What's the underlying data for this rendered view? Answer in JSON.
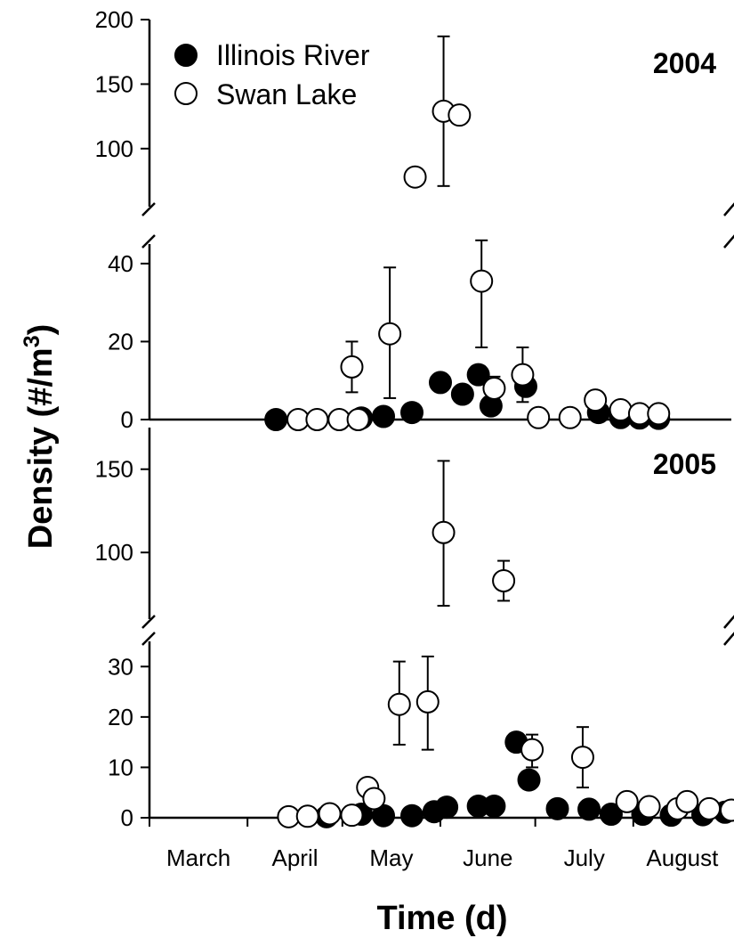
{
  "chart_data": {
    "type": "scatter",
    "xlabel": "Time (d)",
    "ylabel": "Density (#/m³)",
    "ylabel_main": "Density (#/m",
    "ylabel_sup": "3",
    "ylabel_close": ")",
    "x_ticks": [
      "March",
      "April",
      "May",
      "June",
      "July",
      "August"
    ],
    "legend": {
      "position": "top-left",
      "entries": [
        {
          "name": "Illinois River",
          "marker": "filled-circle",
          "color": "#000000"
        },
        {
          "name": "Swan Lake",
          "marker": "open-circle",
          "color": "#ffffff"
        }
      ]
    },
    "x_range": [
      1,
      185
    ],
    "x_month_starts": [
      1,
      32,
      62,
      93,
      123,
      154
    ],
    "panels": [
      {
        "year": "2004",
        "broken_axis": true,
        "y_segments": [
          {
            "range": [
              0,
              45
            ],
            "ticks": [
              0,
              20,
              40
            ]
          },
          {
            "range": [
              55,
              200
            ],
            "ticks": [
              100,
              150,
              200
            ]
          }
        ],
        "series": [
          {
            "name": "Illinois River",
            "points": [
              {
                "x": 41,
                "y": 0
              },
              {
                "x": 68,
                "y": 0.4
              },
              {
                "x": 75,
                "y": 0.8
              },
              {
                "x": 84,
                "y": 1.8
              },
              {
                "x": 93,
                "y": 9.5
              },
              {
                "x": 100,
                "y": 6.5
              },
              {
                "x": 105,
                "y": 11.5
              },
              {
                "x": 109,
                "y": 3.5
              },
              {
                "x": 120,
                "y": 8.5
              },
              {
                "x": 143,
                "y": 1.8
              },
              {
                "x": 150,
                "y": 0.5
              },
              {
                "x": 156,
                "y": 0.4
              },
              {
                "x": 162,
                "y": 0.3
              }
            ]
          },
          {
            "name": "Swan Lake",
            "points": [
              {
                "x": 48,
                "y": 0
              },
              {
                "x": 54,
                "y": 0
              },
              {
                "x": 61,
                "y": 0
              },
              {
                "x": 67,
                "y": 0
              },
              {
                "x": 65,
                "y": 13.5,
                "err_low": 7,
                "err_high": 20
              },
              {
                "x": 77,
                "y": 22,
                "err_low": 5.5,
                "err_high": 39
              },
              {
                "x": 85,
                "y": 78
              },
              {
                "x": 94,
                "y": 129,
                "err_low": 71,
                "err_high": 187
              },
              {
                "x": 99,
                "y": 126
              },
              {
                "x": 106,
                "y": 35.5,
                "err_low": 18.5,
                "err_high": 46
              },
              {
                "x": 110,
                "y": 8,
                "err_low": 3,
                "err_high": 11
              },
              {
                "x": 119,
                "y": 11.5,
                "err_low": 4.5,
                "err_high": 18.5
              },
              {
                "x": 124,
                "y": 0.5
              },
              {
                "x": 134,
                "y": 0.5
              },
              {
                "x": 142,
                "y": 5
              },
              {
                "x": 150,
                "y": 2.5
              },
              {
                "x": 156,
                "y": 1.5
              },
              {
                "x": 162,
                "y": 1.5
              }
            ]
          }
        ]
      },
      {
        "year": "2005",
        "broken_axis": true,
        "y_segments": [
          {
            "range": [
              0,
              35
            ],
            "ticks": [
              0,
              10,
              20,
              30
            ]
          },
          {
            "range": [
              60,
              175
            ],
            "ticks": [
              100,
              150
            ]
          }
        ],
        "series": [
          {
            "name": "Illinois River",
            "points": [
              {
                "x": 57,
                "y": 0.2
              },
              {
                "x": 68,
                "y": 0.7
              },
              {
                "x": 75,
                "y": 0.4
              },
              {
                "x": 84,
                "y": 0.4
              },
              {
                "x": 91,
                "y": 1.2
              },
              {
                "x": 95,
                "y": 2.1
              },
              {
                "x": 105,
                "y": 2.3
              },
              {
                "x": 110,
                "y": 2.3
              },
              {
                "x": 117,
                "y": 15
              },
              {
                "x": 121,
                "y": 7.5
              },
              {
                "x": 130,
                "y": 1.8
              },
              {
                "x": 140,
                "y": 1.7
              },
              {
                "x": 147,
                "y": 0.7
              },
              {
                "x": 157,
                "y": 0.7
              },
              {
                "x": 166,
                "y": 0.5
              },
              {
                "x": 176,
                "y": 0.6
              },
              {
                "x": 183,
                "y": 1.1
              }
            ]
          },
          {
            "name": "Swan Lake",
            "points": [
              {
                "x": 45,
                "y": 0.2
              },
              {
                "x": 51,
                "y": 0.3
              },
              {
                "x": 58,
                "y": 0.8
              },
              {
                "x": 65,
                "y": 0.5
              },
              {
                "x": 70,
                "y": 6
              },
              {
                "x": 72,
                "y": 3.8
              },
              {
                "x": 80,
                "y": 22.5,
                "err_low": 14.5,
                "err_high": 31
              },
              {
                "x": 89,
                "y": 23,
                "err_low": 13.5,
                "err_high": 32
              },
              {
                "x": 94,
                "y": 112,
                "err_low": 68,
                "err_high": 155
              },
              {
                "x": 113,
                "y": 83,
                "err_low": 71,
                "err_high": 95
              },
              {
                "x": 122,
                "y": 13.5,
                "err_low": 10,
                "err_high": 16.5
              },
              {
                "x": 138,
                "y": 12,
                "err_low": 6,
                "err_high": 18
              },
              {
                "x": 152,
                "y": 3.2
              },
              {
                "x": 159,
                "y": 2.2
              },
              {
                "x": 168,
                "y": 1.8
              },
              {
                "x": 171,
                "y": 3.2
              },
              {
                "x": 178,
                "y": 1.8
              },
              {
                "x": 185,
                "y": 1.5
              }
            ]
          }
        ]
      }
    ]
  }
}
